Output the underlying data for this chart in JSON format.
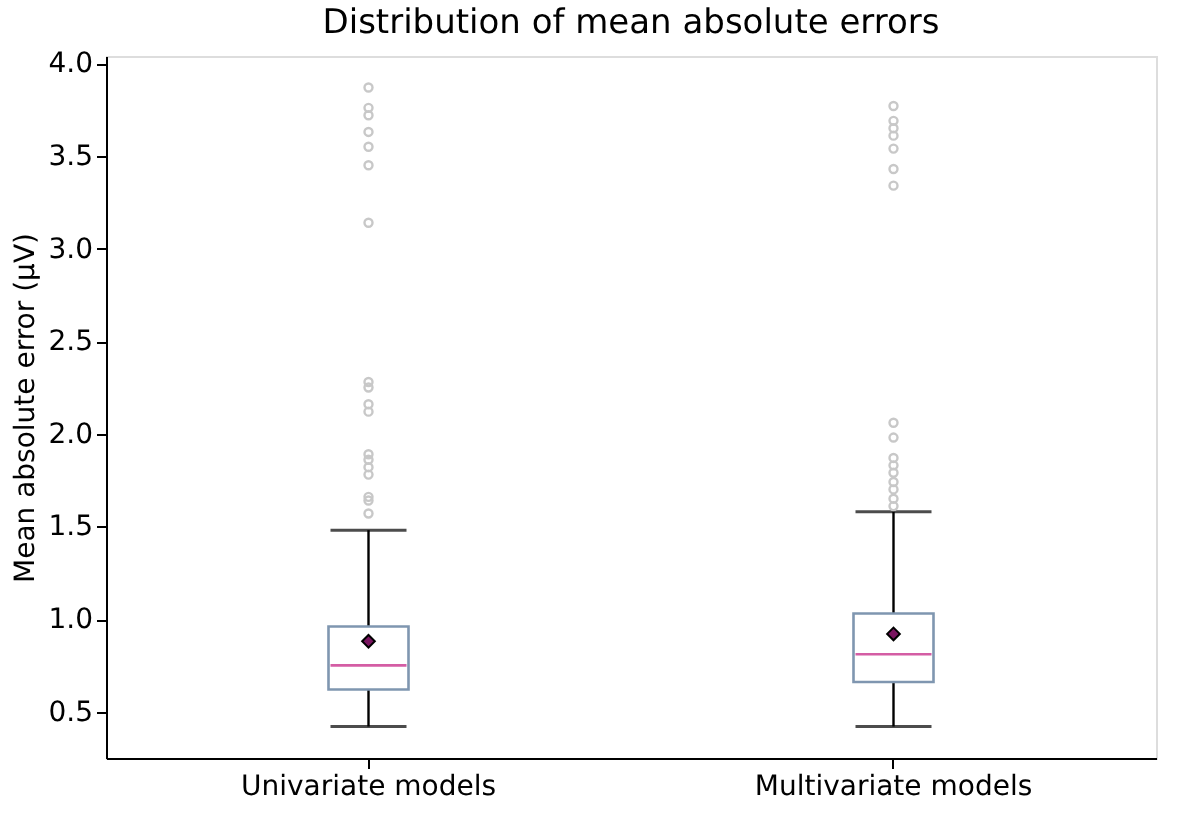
{
  "chart_data": {
    "type": "box",
    "title": "Distribution of mean absolute errors",
    "ylabel": "Mean absolute error (μV)",
    "categories": [
      "Univariate models",
      "Multivariate models"
    ],
    "color": "#7f96b0",
    "boxes": [
      {
        "low": 0.42,
        "q1": 0.62,
        "median": 0.75,
        "q3": 0.96,
        "high": 1.48,
        "mean": 0.88,
        "outliers": [
          3.87,
          3.76,
          3.72,
          3.63,
          3.55,
          3.45,
          3.14,
          2.28,
          2.25,
          2.16,
          2.12,
          1.89,
          1.86,
          1.82,
          1.78,
          1.66,
          1.64,
          1.57
        ]
      },
      {
        "low": 0.42,
        "q1": 0.66,
        "median": 0.81,
        "q3": 1.03,
        "high": 1.58,
        "mean": 0.92,
        "outliers": [
          3.77,
          3.69,
          3.65,
          3.61,
          3.54,
          3.43,
          3.34,
          2.06,
          1.98,
          1.87,
          1.83,
          1.79,
          1.74,
          1.7,
          1.65,
          1.61
        ]
      }
    ],
    "ylim": [
      0.25,
      4.04
    ],
    "yticks": [
      0.5,
      {
        "value": 1,
        "label": "1.0"
      },
      1.5,
      {
        "value": 2,
        "label": "2.0"
      },
      2.5,
      {
        "value": 3,
        "label": "3.0"
      },
      3.5,
      {
        "value": 4,
        "label": "4.0"
      }
    ],
    "grid": false
  }
}
